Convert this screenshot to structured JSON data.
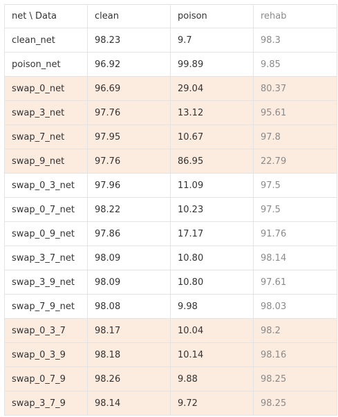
{
  "table": {
    "headers": [
      "net \\ Data",
      "clean",
      "poison",
      "rehab"
    ],
    "highlight_color": "#fcebdf",
    "rows": [
      {
        "cells": [
          "clean_net",
          "98.23",
          "9.7",
          "98.3"
        ],
        "highlighted": false
      },
      {
        "cells": [
          "poison_net",
          "96.92",
          "99.89",
          "9.85"
        ],
        "highlighted": false
      },
      {
        "cells": [
          "swap_0_net",
          "96.69",
          "29.04",
          "80.37"
        ],
        "highlighted": true
      },
      {
        "cells": [
          "swap_3_net",
          "97.76",
          "13.12",
          "95.61"
        ],
        "highlighted": true
      },
      {
        "cells": [
          "swap_7_net",
          "97.95",
          "10.67",
          "97.8"
        ],
        "highlighted": true
      },
      {
        "cells": [
          "swap_9_net",
          "97.76",
          "86.95",
          "22.79"
        ],
        "highlighted": true
      },
      {
        "cells": [
          "swap_0_3_net",
          "97.96",
          "11.09",
          "97.5"
        ],
        "highlighted": false
      },
      {
        "cells": [
          "swap_0_7_net",
          "98.22",
          "10.23",
          "97.5"
        ],
        "highlighted": false
      },
      {
        "cells": [
          "swap_0_9_net",
          "97.86",
          "17.17",
          "91.76"
        ],
        "highlighted": false
      },
      {
        "cells": [
          "swap_3_7_net",
          "98.09",
          "10.80",
          "98.14"
        ],
        "highlighted": false
      },
      {
        "cells": [
          "swap_3_9_net",
          "98.09",
          "10.80",
          "97.61"
        ],
        "highlighted": false
      },
      {
        "cells": [
          "swap_7_9_net",
          "98.08",
          "9.98",
          "98.03"
        ],
        "highlighted": false
      },
      {
        "cells": [
          "swap_0_3_7",
          "98.17",
          "10.04",
          "98.2"
        ],
        "highlighted": true
      },
      {
        "cells": [
          "swap_0_3_9",
          "98.18",
          "10.14",
          "98.16"
        ],
        "highlighted": true
      },
      {
        "cells": [
          "swap_0_7_9",
          "98.26",
          "9.88",
          "98.25"
        ],
        "highlighted": true
      },
      {
        "cells": [
          "swap_3_7_9",
          "98.14",
          "9.72",
          "98.25"
        ],
        "highlighted": true
      }
    ]
  }
}
